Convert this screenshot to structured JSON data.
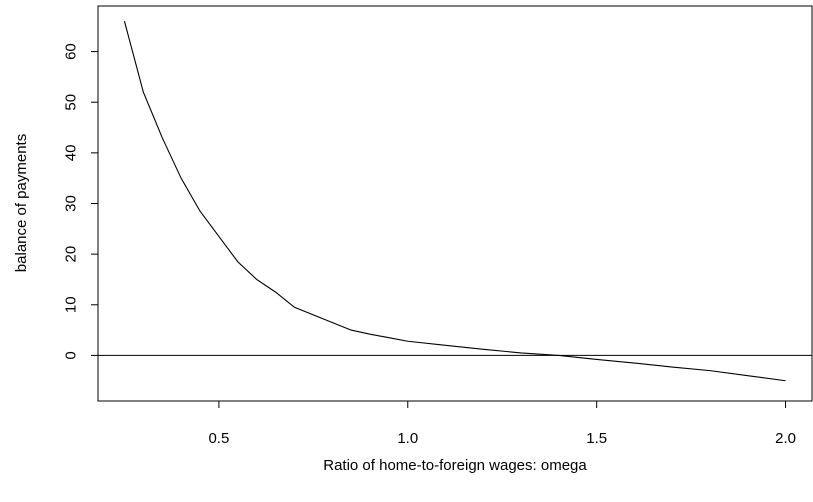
{
  "chart_data": {
    "type": "line",
    "title": "",
    "xlabel": "Ratio of home-to-foreign wages: omega",
    "ylabel": "balance of payments",
    "xlim": [
      0.18,
      2.07
    ],
    "ylim": [
      -9,
      69
    ],
    "xticks": [
      {
        "value": 0.5,
        "label": "0.5"
      },
      {
        "value": 1.0,
        "label": "1.0"
      },
      {
        "value": 1.5,
        "label": "1.5"
      },
      {
        "value": 2.0,
        "label": "2.0"
      }
    ],
    "yticks": [
      {
        "value": 0,
        "label": "0"
      },
      {
        "value": 10,
        "label": "10"
      },
      {
        "value": 20,
        "label": "20"
      },
      {
        "value": 30,
        "label": "30"
      },
      {
        "value": 40,
        "label": "40"
      },
      {
        "value": 50,
        "label": "50"
      },
      {
        "value": 60,
        "label": "60"
      }
    ],
    "hline": 0,
    "line_color": "#000000",
    "series": [
      {
        "x": [
          0.25,
          0.3,
          0.35,
          0.4,
          0.45,
          0.5,
          0.55,
          0.6,
          0.65,
          0.7,
          0.75,
          0.8,
          0.85,
          0.9,
          0.95,
          1.0,
          1.1,
          1.2,
          1.3,
          1.4,
          1.5,
          1.6,
          1.7,
          1.8,
          1.9,
          2.0
        ],
        "values": [
          66,
          52,
          43,
          35,
          28.5,
          23.5,
          18.5,
          15,
          12.5,
          9.5,
          8,
          6.5,
          5,
          4.2,
          3.5,
          2.8,
          2.0,
          1.2,
          0.5,
          0,
          -0.8,
          -1.5,
          -2.3,
          -3.0,
          -4.0,
          -5.0
        ]
      }
    ]
  }
}
